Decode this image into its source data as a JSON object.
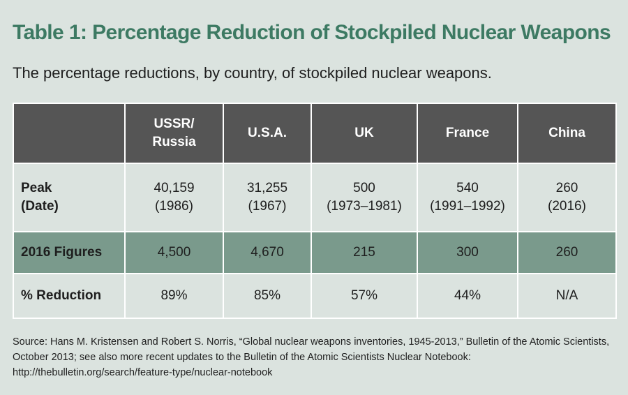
{
  "title": "Table 1: Percentage Reduction of Stockpiled Nuclear Weapons",
  "subtitle": "The percentage reductions, by country, of stockpiled nuclear weapons.",
  "chart_data": {
    "type": "table",
    "columns": [
      {
        "line1": "USSR/",
        "line2": "Russia"
      },
      {
        "line1": "U.S.A.",
        "line2": ""
      },
      {
        "line1": "UK",
        "line2": ""
      },
      {
        "line1": "France",
        "line2": ""
      },
      {
        "line1": "China",
        "line2": ""
      }
    ],
    "rows": [
      {
        "label_line1": "Peak",
        "label_line2": "(Date)",
        "cells": [
          {
            "value": "40,159",
            "date": "(1986)"
          },
          {
            "value": "31,255",
            "date": "(1967)"
          },
          {
            "value": "500",
            "date": "(1973–1981)"
          },
          {
            "value": "540",
            "date": "(1991–1992)"
          },
          {
            "value": "260",
            "date": "(2016)"
          }
        ]
      },
      {
        "label_line1": "2016 Figures",
        "cells": [
          {
            "value": "4,500"
          },
          {
            "value": "4,670"
          },
          {
            "value": "215"
          },
          {
            "value": "300"
          },
          {
            "value": "260"
          }
        ]
      },
      {
        "label_line1": "% Reduction",
        "cells": [
          {
            "value": "89%"
          },
          {
            "value": "85%"
          },
          {
            "value": "57%"
          },
          {
            "value": "44%"
          },
          {
            "value": "N/A"
          }
        ]
      }
    ]
  },
  "source": "Source: Hans M. Kristensen and Robert S. Norris, “Global nuclear weapons inventories, 1945-2013,” Bulletin of the Atomic Scientists, October 2013; see also more recent updates to the Bulletin of the Atomic Scientists Nuclear Notebook: http://thebulletin.org/search/feature-type/nuclear-notebook",
  "colors": {
    "background": "#dbe3df",
    "title": "#3d7a63",
    "header_bg": "#555555",
    "highlight_row": "#7a9a8c"
  }
}
